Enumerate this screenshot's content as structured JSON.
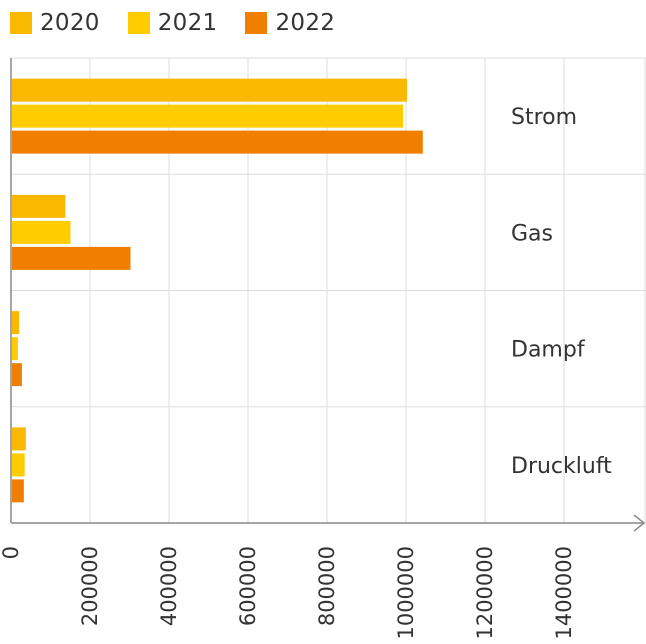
{
  "colors": {
    "series_2020": "#FBB800",
    "series_2021": "#FFCC00",
    "series_2022": "#F07F00",
    "grid": "#DDDDDD",
    "axis": "#888888"
  },
  "chart_data": {
    "type": "bar",
    "orientation": "horizontal",
    "categories": [
      "Strom",
      "Gas",
      "Dampf",
      "Druckluft"
    ],
    "series": [
      {
        "name": "2020",
        "values": [
          1000000,
          135000,
          18000,
          35000
        ]
      },
      {
        "name": "2021",
        "values": [
          990000,
          148000,
          15000,
          32000
        ]
      },
      {
        "name": "2022",
        "values": [
          1040000,
          300000,
          25000,
          30000
        ]
      }
    ],
    "xlim": [
      0,
      1600000
    ],
    "xticks": [
      "0",
      "200000",
      "400000",
      "600000",
      "800000",
      "1000000",
      "1200000",
      "1400000"
    ],
    "grid": true,
    "legend_position": "top-left"
  }
}
